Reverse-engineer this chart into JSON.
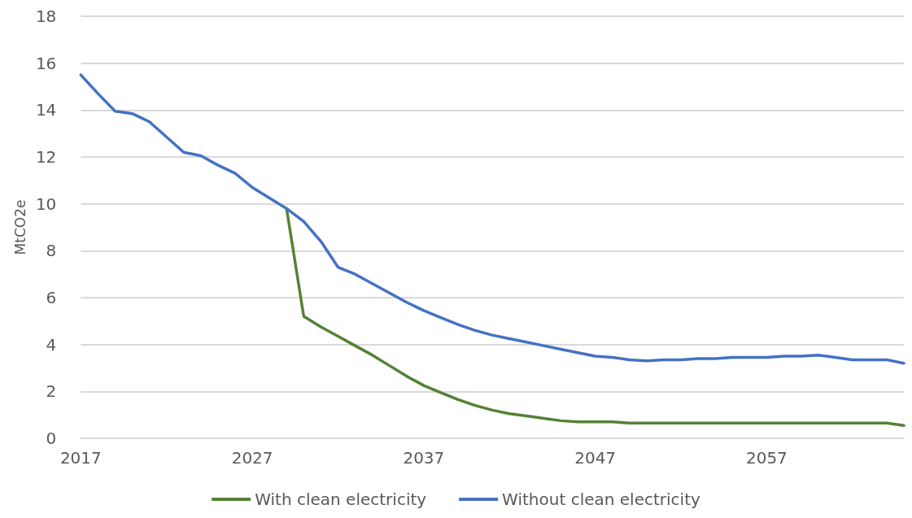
{
  "chart_data": {
    "type": "line",
    "ylabel": "MtCO2e",
    "x": [
      2017,
      2018,
      2019,
      2020,
      2021,
      2022,
      2023,
      2024,
      2025,
      2026,
      2027,
      2028,
      2029,
      2030,
      2031,
      2032,
      2033,
      2034,
      2035,
      2036,
      2037,
      2038,
      2039,
      2040,
      2041,
      2042,
      2043,
      2044,
      2045,
      2046,
      2047,
      2048,
      2049,
      2050,
      2051,
      2052,
      2053,
      2054,
      2055,
      2056,
      2057,
      2058,
      2059,
      2060,
      2061,
      2062,
      2063,
      2064,
      2065
    ],
    "series": [
      {
        "name": "With clean electricity",
        "color": "#548235",
        "values": [
          null,
          null,
          null,
          null,
          null,
          null,
          null,
          null,
          null,
          null,
          null,
          null,
          9.8,
          5.2,
          4.75,
          4.35,
          3.95,
          3.55,
          3.1,
          2.65,
          2.25,
          1.95,
          1.65,
          1.4,
          1.2,
          1.05,
          0.95,
          0.85,
          0.75,
          0.7,
          0.7,
          0.7,
          0.65,
          0.65,
          0.65,
          0.65,
          0.65,
          0.65,
          0.65,
          0.65,
          0.65,
          0.65,
          0.65,
          0.65,
          0.65,
          0.65,
          0.65,
          0.65,
          0.55
        ]
      },
      {
        "name": "Without clean electricity",
        "color": "#4472c4",
        "values": [
          15.5,
          14.7,
          13.95,
          13.85,
          13.5,
          12.85,
          12.2,
          12.05,
          11.65,
          11.3,
          10.7,
          10.25,
          9.8,
          9.25,
          8.4,
          7.3,
          7.0,
          6.6,
          6.2,
          5.8,
          5.45,
          5.15,
          4.85,
          4.6,
          4.4,
          4.25,
          4.1,
          3.95,
          3.8,
          3.65,
          3.5,
          3.45,
          3.35,
          3.3,
          3.35,
          3.35,
          3.4,
          3.4,
          3.45,
          3.45,
          3.45,
          3.5,
          3.5,
          3.55,
          3.45,
          3.35,
          3.35,
          3.35,
          3.2
        ]
      }
    ],
    "xlim": [
      2017,
      2065
    ],
    "xticks": [
      2017,
      2027,
      2037,
      2047,
      2057
    ],
    "ylim": [
      0,
      18
    ],
    "yticks": [
      0,
      2,
      4,
      6,
      8,
      10,
      12,
      14,
      16,
      18
    ],
    "grid": "y",
    "legend": "bottom",
    "marker": "none",
    "line_style": "solid"
  }
}
